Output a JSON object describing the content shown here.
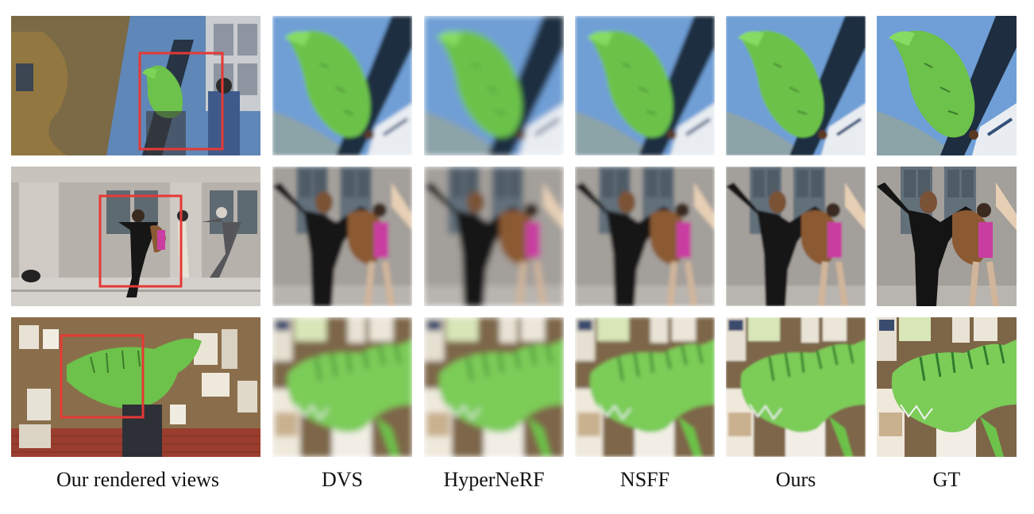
{
  "captions": [
    "Our rendered views",
    "DVS",
    "HyperNeRF",
    "NSFF",
    "Ours",
    "GT"
  ],
  "rows": [
    "balloon",
    "jumping",
    "notice-board"
  ],
  "colors": {
    "highlight_box": "#e53935",
    "balloon_green": "#6cc24a",
    "wall_blue": "#4a7fc0",
    "building_gray": "#a9a6a2",
    "board_cork": "#8a6e4b"
  }
}
